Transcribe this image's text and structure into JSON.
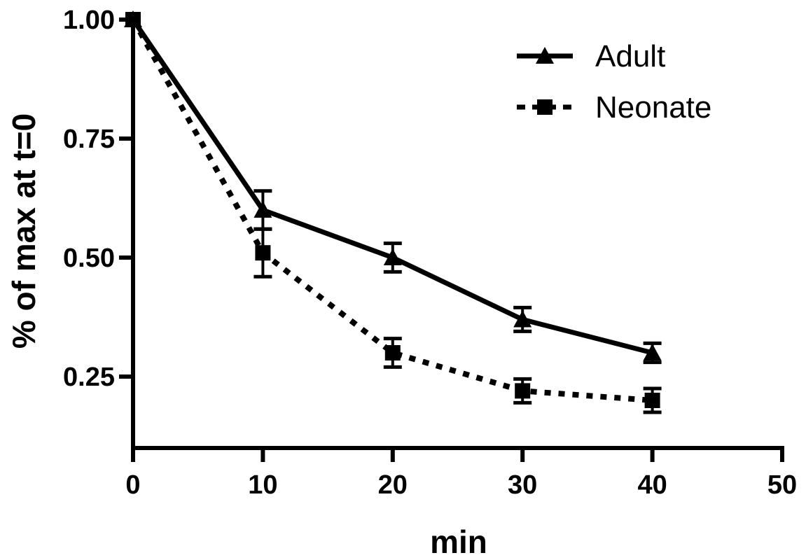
{
  "chart_data": {
    "type": "line",
    "xlabel": "min",
    "ylabel": "% of max at t=0",
    "xlim": [
      0,
      50
    ],
    "ylim": [
      0.1,
      1.0
    ],
    "xticks": [
      "0",
      "10",
      "20",
      "30",
      "40",
      "50"
    ],
    "yticks": [
      "1.00",
      "0.75",
      "0.50",
      "0.25"
    ],
    "ytick_values": [
      1.0,
      0.75,
      0.5,
      0.25
    ],
    "xtick_values": [
      0,
      10,
      20,
      30,
      40,
      50
    ],
    "grid": false,
    "legend_position": "top-right",
    "x": [
      0,
      10,
      20,
      30,
      40
    ],
    "series": [
      {
        "name": "Adult",
        "marker": "triangle",
        "line_style": "solid",
        "color": "#000000",
        "values": [
          1.0,
          0.6,
          0.5,
          0.37,
          0.3
        ],
        "error": [
          0.0,
          0.04,
          0.03,
          0.025,
          0.02
        ]
      },
      {
        "name": "Neonate",
        "marker": "square",
        "line_style": "dotted",
        "color": "#000000",
        "values": [
          1.0,
          0.51,
          0.3,
          0.22,
          0.2
        ],
        "error": [
          0.0,
          0.05,
          0.03,
          0.025,
          0.025
        ]
      }
    ]
  }
}
